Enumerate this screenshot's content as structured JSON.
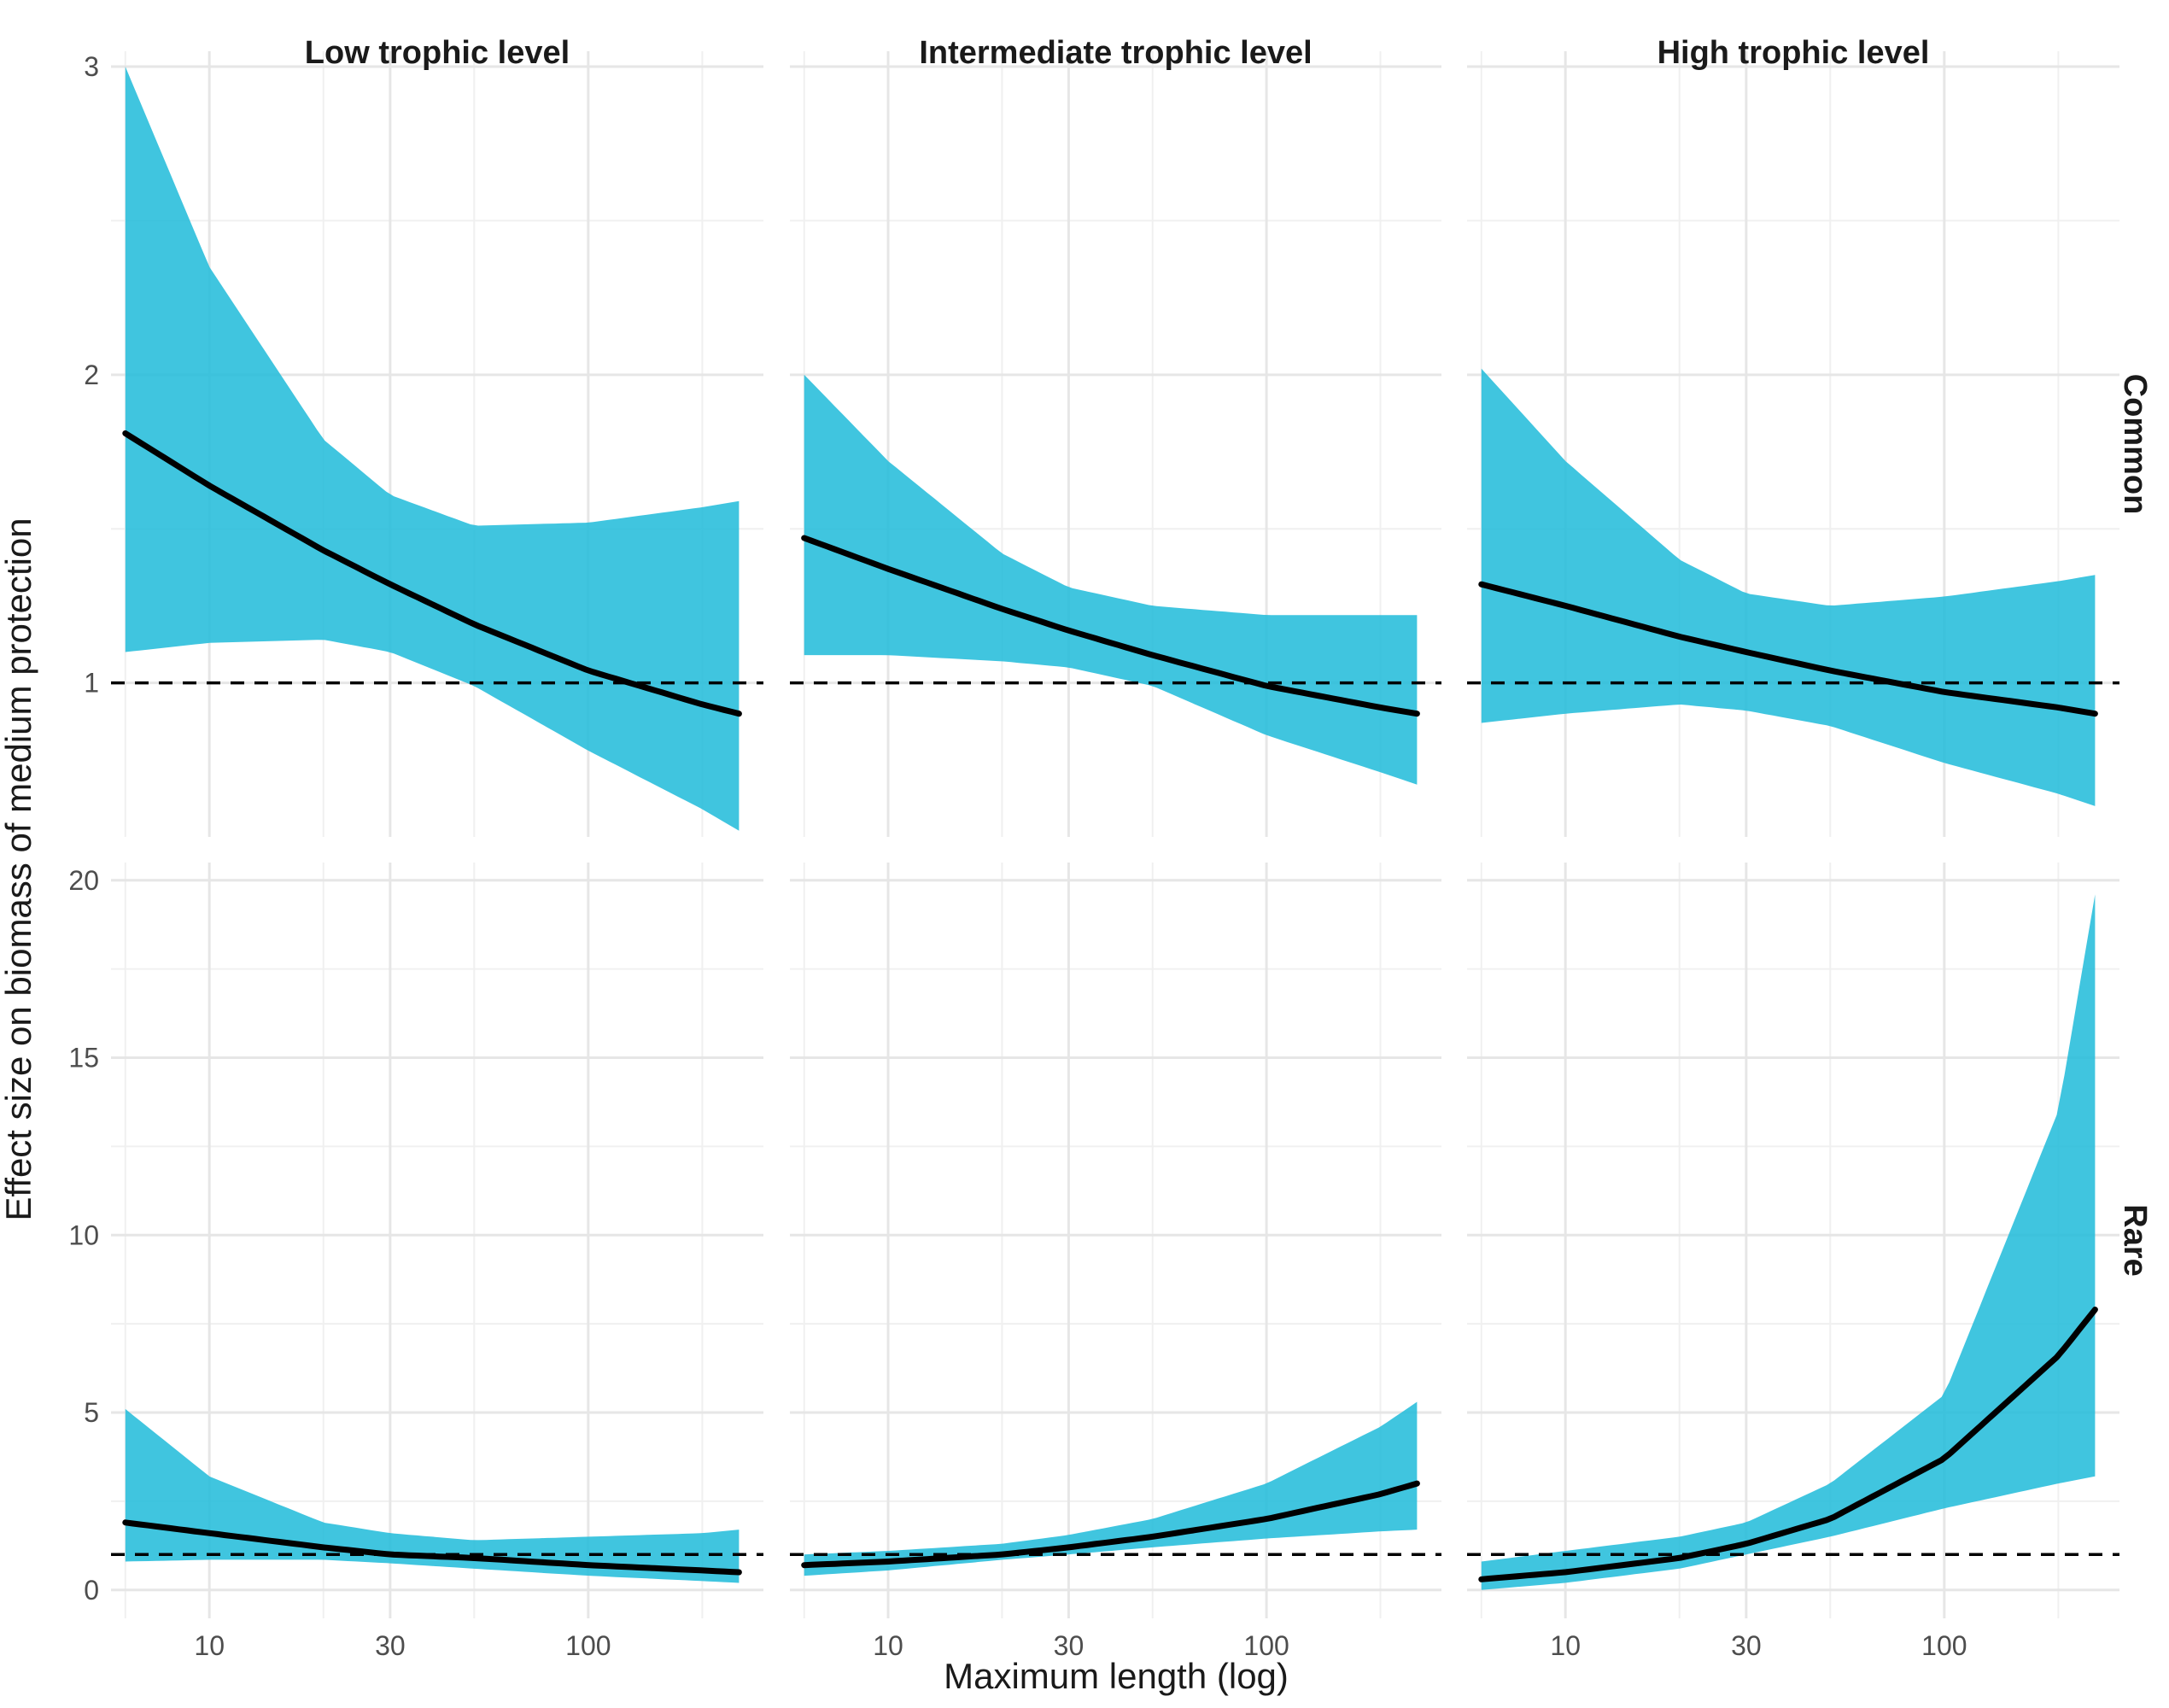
{
  "chart_data": {
    "type": "area",
    "title": "",
    "xlabel": "Maximum length (log)",
    "ylabel": "Effect size on biomass of medium protection",
    "x_scale": "log",
    "x_ticks": [
      10,
      30,
      100
    ],
    "x_range": [
      5.5,
      290
    ],
    "reference_line_y": 1,
    "grid": true,
    "columns": [
      "Low trophic level",
      "Intermediate trophic level",
      "High trophic level"
    ],
    "rows": [
      "Common",
      "Rare"
    ],
    "row_axes": [
      {
        "row": "Common",
        "ylim": [
          0.5,
          3.05
        ],
        "y_ticks": [
          1,
          2,
          3
        ]
      },
      {
        "row": "Rare",
        "ylim": [
          -0.8,
          20.5
        ],
        "y_ticks": [
          0,
          5,
          10,
          15,
          20
        ]
      }
    ],
    "panels": [
      {
        "column": "Low trophic level",
        "row": "Common",
        "x": [
          6,
          10,
          20,
          30,
          50,
          100,
          200,
          250
        ],
        "y": [
          1.81,
          1.64,
          1.43,
          1.32,
          1.19,
          1.04,
          0.93,
          0.9
        ],
        "lower": [
          1.1,
          1.13,
          1.14,
          1.1,
          0.99,
          0.78,
          0.59,
          0.52
        ],
        "upper": [
          3.0,
          2.35,
          1.79,
          1.61,
          1.51,
          1.52,
          1.57,
          1.59
        ]
      },
      {
        "column": "Intermediate trophic level",
        "row": "Common",
        "x": [
          6,
          10,
          20,
          30,
          50,
          100,
          200,
          250
        ],
        "y": [
          1.47,
          1.37,
          1.24,
          1.17,
          1.09,
          0.99,
          0.92,
          0.9
        ],
        "lower": [
          1.09,
          1.09,
          1.07,
          1.05,
          0.99,
          0.83,
          0.71,
          0.67
        ],
        "upper": [
          2.0,
          1.72,
          1.42,
          1.31,
          1.25,
          1.22,
          1.22,
          1.22
        ]
      },
      {
        "column": "High trophic level",
        "row": "Common",
        "x": [
          6,
          10,
          20,
          30,
          50,
          100,
          200,
          250
        ],
        "y": [
          1.32,
          1.25,
          1.15,
          1.1,
          1.04,
          0.97,
          0.92,
          0.9
        ],
        "lower": [
          0.87,
          0.9,
          0.93,
          0.91,
          0.86,
          0.74,
          0.64,
          0.6
        ],
        "upper": [
          2.02,
          1.72,
          1.4,
          1.29,
          1.25,
          1.28,
          1.33,
          1.35
        ]
      },
      {
        "column": "Low trophic level",
        "row": "Rare",
        "x": [
          6,
          10,
          20,
          30,
          50,
          100,
          200,
          250
        ],
        "y": [
          1.9,
          1.6,
          1.2,
          1.0,
          0.9,
          0.7,
          0.55,
          0.5
        ],
        "lower": [
          0.8,
          0.85,
          0.85,
          0.75,
          0.6,
          0.4,
          0.25,
          0.2
        ],
        "upper": [
          5.1,
          3.2,
          1.9,
          1.6,
          1.4,
          1.5,
          1.6,
          1.7
        ]
      },
      {
        "column": "Intermediate trophic level",
        "row": "Rare",
        "x": [
          6,
          10,
          20,
          30,
          50,
          100,
          200,
          250
        ],
        "y": [
          0.7,
          0.8,
          1.0,
          1.2,
          1.5,
          2.0,
          2.7,
          3.0
        ],
        "lower": [
          0.4,
          0.55,
          0.85,
          1.0,
          1.2,
          1.45,
          1.65,
          1.7
        ],
        "upper": [
          1.0,
          1.1,
          1.3,
          1.55,
          2.0,
          3.0,
          4.6,
          5.3
        ]
      },
      {
        "column": "High trophic level",
        "row": "Rare",
        "x": [
          6,
          10,
          20,
          30,
          50,
          100,
          200,
          250
        ],
        "y": [
          0.3,
          0.5,
          0.9,
          1.3,
          2.0,
          3.7,
          6.6,
          7.9
        ],
        "lower": [
          0.0,
          0.2,
          0.6,
          1.0,
          1.5,
          2.3,
          3.0,
          3.2
        ],
        "upper": [
          0.8,
          1.1,
          1.5,
          1.9,
          3.0,
          5.5,
          13.5,
          19.6
        ]
      }
    ]
  }
}
